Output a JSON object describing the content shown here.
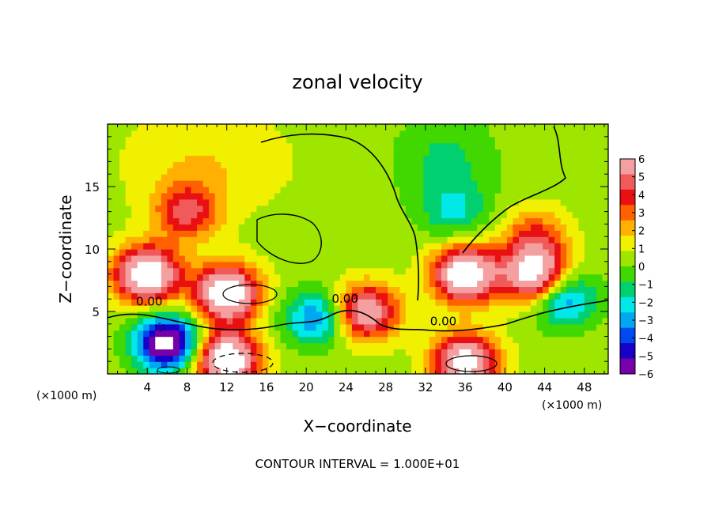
{
  "chart_data": {
    "type": "heatmap",
    "title": "zonal velocity",
    "xlabel": "X−coordinate",
    "ylabel": "Z−coordinate",
    "x_unit_left": "(×1000 m)",
    "x_unit_right": "(×1000 m)",
    "footer": "CONTOUR INTERVAL = 1.000E+01",
    "xlim": [
      0,
      50.4
    ],
    "ylim": [
      0,
      20
    ],
    "x_ticks": [
      4,
      8,
      12,
      16,
      20,
      24,
      28,
      32,
      36,
      40,
      44,
      48
    ],
    "y_ticks": [
      5,
      10,
      15
    ],
    "colorbar": {
      "range": [
        -6,
        6
      ],
      "ticks": [
        6,
        5,
        4,
        3,
        2,
        1,
        0,
        -1,
        -2,
        -3,
        -4,
        -5,
        -6
      ],
      "tick_labels": [
        "6",
        "5",
        "4",
        "3",
        "2",
        "1",
        "0",
        "−1",
        "−2",
        "−3",
        "−4",
        "−5",
        "−6"
      ],
      "colors": [
        "#f4a0a0",
        "#f05a5a",
        "#e81010",
        "#ff6000",
        "#ffb000",
        "#f0f000",
        "#9ee600",
        "#40d800",
        "#00d070",
        "#00e8e8",
        "#00a8f0",
        "#0048f0",
        "#1800c8",
        "#7800a8"
      ]
    },
    "contour_labels": [
      {
        "text": "0.00",
        "x": 4.2,
        "z": 5.8
      },
      {
        "text": "0.00",
        "x": 23.9,
        "z": 6.0
      },
      {
        "text": "0.00",
        "x": 33.8,
        "z": 4.2
      }
    ],
    "features": [
      {
        "x": 8,
        "z": 13,
        "value": 4,
        "kind": "positive core"
      },
      {
        "x": 12,
        "z": 6.5,
        "value": 8,
        "kind": "saturated positive"
      },
      {
        "x": 4,
        "z": 8,
        "value": 8,
        "kind": "saturated positive"
      },
      {
        "x": 6,
        "z": 2.5,
        "value": -8,
        "kind": "saturated negative"
      },
      {
        "x": 12,
        "z": 1.2,
        "value": 8,
        "kind": "saturated positive"
      },
      {
        "x": 26,
        "z": 5,
        "value": 6,
        "kind": "positive core"
      },
      {
        "x": 36,
        "z": 8,
        "value": 8,
        "kind": "saturated positive"
      },
      {
        "x": 35,
        "z": 13,
        "value": -2,
        "kind": "negative core"
      },
      {
        "x": 43,
        "z": 8,
        "value": 7,
        "kind": "saturated positive"
      },
      {
        "x": 43,
        "z": 11,
        "value": 3,
        "kind": "positive core"
      },
      {
        "x": 46,
        "z": 6,
        "value": -4,
        "kind": "negative core"
      },
      {
        "x": 36,
        "z": 1,
        "value": 7,
        "kind": "saturated positive"
      },
      {
        "x": 21,
        "z": 4.5,
        "value": -4,
        "kind": "negative core"
      }
    ]
  }
}
